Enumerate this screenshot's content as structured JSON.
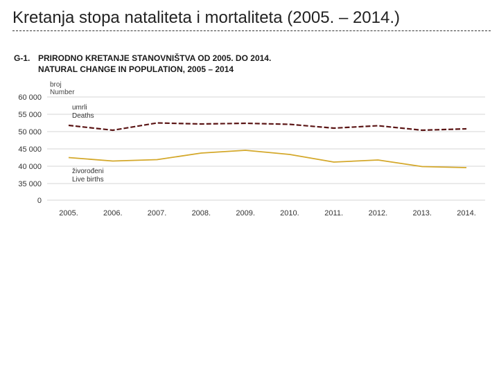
{
  "slide": {
    "title": "Kretanja stopa nataliteta i mortaliteta (2005. – 2014.)"
  },
  "figure": {
    "code": "G-1.",
    "title_hr": "PRIRODNO KRETANJE STANOVNIŠTVA OD 2005. DO 2014.",
    "title_en": "NATURAL CHANGE IN POPULATION, 2005 – 2014",
    "unit_hr": "broj",
    "unit_en": "Number"
  },
  "chart_data": {
    "type": "line",
    "categories": [
      "2005.",
      "2006.",
      "2007.",
      "2008.",
      "2009.",
      "2010.",
      "2011.",
      "2012.",
      "2013.",
      "2014."
    ],
    "y_ticks": [
      "60 000",
      "55 000",
      "50 000",
      "45 000",
      "40 000",
      "35 000",
      "0"
    ],
    "y_tick_values": [
      60000,
      55000,
      50000,
      45000,
      40000,
      35000,
      0
    ],
    "ylim": [
      0,
      60000
    ],
    "axis_break": true,
    "grid": true,
    "series": [
      {
        "name_hr": "umrli",
        "name_en": "Deaths",
        "color": "#5a1414",
        "style": "dashed",
        "values": [
          51800,
          50400,
          52500,
          52200,
          52400,
          52100,
          51000,
          51700,
          50400,
          50800
        ]
      },
      {
        "name_hr": "živorođeni",
        "name_en": "Live births",
        "color": "#d4a82a",
        "style": "solid",
        "values": [
          42500,
          41500,
          41900,
          43800,
          44600,
          43400,
          41200,
          41800,
          39900,
          39600
        ]
      }
    ]
  }
}
